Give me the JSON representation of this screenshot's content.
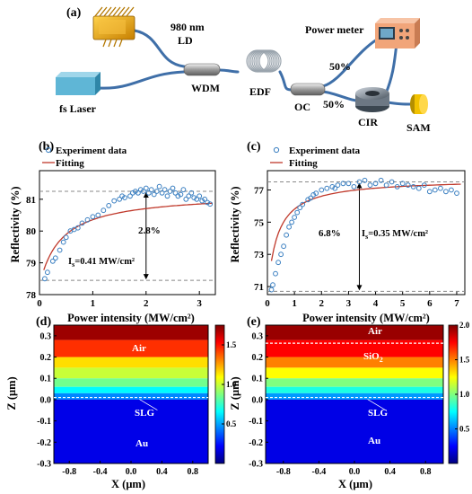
{
  "panel_labels": {
    "a": "(a)",
    "b": "(b)",
    "c": "(c)",
    "d": "(d)",
    "e": "(e)"
  },
  "setup": {
    "ld": "980 nm",
    "ld2": "LD",
    "fs_laser": "fs Laser",
    "wdm": "WDM",
    "edf": "EDF",
    "oc": "OC",
    "power_meter": "Power meter",
    "split_top": "50%",
    "split_bottom": "50%",
    "cir": "CIR",
    "sam": "SAM"
  },
  "colors": {
    "fiber": "#3f6fa8",
    "laser_gold": "#e8a21a",
    "laser_box": "#5fb6d6",
    "meter": "#f1a57a",
    "sam": "#f2c200",
    "fit": "#c0392b",
    "marker": "#3a7fc1"
  },
  "chart_data": [
    {
      "id": "b",
      "type": "scatter",
      "xlabel": "Power intensity (MW/cm²)",
      "ylabel": "Reflectivity (%)",
      "xlim": [
        0,
        3.3
      ],
      "ylim": [
        78,
        81.9
      ],
      "xticks": [
        "0",
        "1",
        "2",
        "3"
      ],
      "yticks": [
        "78",
        "79",
        "80",
        "81"
      ],
      "legend": [
        "Experiment data",
        "Fitting"
      ],
      "legend_position": "top-left",
      "annotation_delta": "2.8%",
      "annotation_is": "I",
      "annotation_is_sub": "s",
      "annotation_is_value": "=0.41 MW/cm²",
      "ref_lines": [
        81.25,
        78.45
      ],
      "fit": {
        "a_ns": 78.3,
        "delta": 2.9,
        "is": 0.41,
        "xmin": 0.08,
        "xmax": 3.25
      },
      "series": [
        {
          "name": "Experiment data",
          "x": [
            0.1,
            0.15,
            0.25,
            0.3,
            0.38,
            0.45,
            0.5,
            0.58,
            0.65,
            0.72,
            0.8,
            0.9,
            1.0,
            1.1,
            1.2,
            1.3,
            1.4,
            1.5,
            1.55,
            1.6,
            1.7,
            1.75,
            1.8,
            1.85,
            1.9,
            1.95,
            2.0,
            2.05,
            2.1,
            2.15,
            2.2,
            2.25,
            2.3,
            2.35,
            2.4,
            2.45,
            2.5,
            2.55,
            2.6,
            2.65,
            2.7,
            2.75,
            2.8,
            2.85,
            2.9,
            2.95,
            3.0,
            3.05,
            3.1,
            3.15,
            3.2
          ],
          "y": [
            78.5,
            78.7,
            79.05,
            79.15,
            79.4,
            79.65,
            79.8,
            80.0,
            80.05,
            80.1,
            80.25,
            80.35,
            80.45,
            80.5,
            80.65,
            80.8,
            80.95,
            81.0,
            81.1,
            81.05,
            81.1,
            81.2,
            81.25,
            81.2,
            81.3,
            81.25,
            81.35,
            81.2,
            81.3,
            81.15,
            81.25,
            81.4,
            81.2,
            81.3,
            81.1,
            81.25,
            81.35,
            81.2,
            81.1,
            81.15,
            81.3,
            81.0,
            81.1,
            81.2,
            81.05,
            81.0,
            81.1,
            80.95,
            81.0,
            80.9,
            80.85
          ]
        }
      ]
    },
    {
      "id": "c",
      "type": "scatter",
      "xlabel": "Power intensity (MW/cm²)",
      "ylabel": "Reflectivity (%)",
      "xlim": [
        0,
        7.3
      ],
      "ylim": [
        70.5,
        78.2
      ],
      "xticks": [
        "0",
        "1",
        "2",
        "3",
        "4",
        "5",
        "6",
        "7"
      ],
      "yticks": [
        "71",
        "73",
        "75",
        "77"
      ],
      "legend": [
        "Experiment data",
        "Fitting"
      ],
      "legend_position": "top-left",
      "annotation_delta": "6.8%",
      "annotation_is": "I",
      "annotation_is_sub": "s",
      "annotation_is_value": "=0.35 MW/cm²",
      "ref_lines": [
        77.5,
        70.7
      ],
      "fit": {
        "a_ns": 70.4,
        "delta": 7.3,
        "is": 0.35,
        "xmin": 0.15,
        "xmax": 7.15
      },
      "series": [
        {
          "name": "Experiment data",
          "x": [
            0.15,
            0.2,
            0.3,
            0.4,
            0.5,
            0.6,
            0.7,
            0.8,
            0.9,
            1.0,
            1.1,
            1.2,
            1.3,
            1.5,
            1.6,
            1.7,
            1.8,
            2.0,
            2.2,
            2.4,
            2.5,
            2.6,
            2.8,
            3.0,
            3.2,
            3.4,
            3.6,
            3.8,
            4.0,
            4.2,
            4.4,
            4.6,
            4.8,
            5.0,
            5.2,
            5.4,
            5.6,
            5.8,
            6.0,
            6.2,
            6.4,
            6.6,
            6.8,
            7.0
          ],
          "y": [
            70.8,
            71.1,
            71.8,
            72.5,
            73.0,
            73.5,
            74.2,
            74.7,
            75.0,
            75.3,
            75.6,
            75.9,
            76.1,
            76.4,
            76.5,
            76.7,
            76.8,
            77.0,
            77.1,
            77.2,
            77.1,
            77.3,
            77.4,
            77.4,
            77.2,
            77.5,
            77.6,
            77.3,
            77.4,
            77.6,
            77.3,
            77.5,
            77.2,
            77.4,
            77.3,
            77.2,
            77.1,
            77.3,
            76.9,
            77.0,
            77.1,
            76.9,
            77.0,
            76.8
          ]
        }
      ]
    },
    {
      "id": "d",
      "type": "heatmap",
      "xlabel": "X (μm)",
      "ylabel": "Z (μm)",
      "xlim": [
        -1,
        1
      ],
      "ylim": [
        -0.3,
        0.35
      ],
      "xticks": [
        "-0.8",
        "-0.4",
        "0.0",
        "0.4",
        "0.8"
      ],
      "yticks": [
        "-0.3",
        "-0.2",
        "-0.1",
        "0.0",
        "0.1",
        "0.2",
        "0.3"
      ],
      "colorbar_ticks": [
        "0.5",
        "1.0",
        "1.5"
      ],
      "colorbar_max": 1.75,
      "labels": [
        "Air",
        "SLG",
        "Au"
      ],
      "bands": [
        {
          "z0": 0.28,
          "z1": 0.35,
          "v": 1.7
        },
        {
          "z0": 0.2,
          "z1": 0.28,
          "v": 1.45
        },
        {
          "z0": 0.15,
          "z1": 0.2,
          "v": 1.15
        },
        {
          "z0": 0.1,
          "z1": 0.15,
          "v": 1.0
        },
        {
          "z0": 0.06,
          "z1": 0.1,
          "v": 0.85
        },
        {
          "z0": 0.03,
          "z1": 0.06,
          "v": 0.65
        },
        {
          "z0": 0.0,
          "z1": 0.03,
          "v": 0.45
        },
        {
          "z0": -0.3,
          "z1": 0.0,
          "v": 0.18
        }
      ],
      "interface_lines": [
        0.01
      ]
    },
    {
      "id": "e",
      "type": "heatmap",
      "xlabel": "X (μm)",
      "ylabel": "Z (μm)",
      "xlim": [
        -1,
        1
      ],
      "ylim": [
        -0.3,
        0.35
      ],
      "xticks": [
        "-0.8",
        "-0.4",
        "0.0",
        "0.4",
        "0.8"
      ],
      "yticks": [
        "-0.3",
        "-0.2",
        "-0.1",
        "0.0",
        "0.1",
        "0.2",
        "0.3"
      ],
      "colorbar_ticks": [
        "0.5",
        "1.0",
        "1.5",
        "2.0"
      ],
      "colorbar_max": 2.0,
      "labels": [
        "Air",
        "SiO",
        "2",
        "SLG",
        "Au"
      ],
      "bands": [
        {
          "z0": 0.28,
          "z1": 0.35,
          "v": 1.95
        },
        {
          "z0": 0.2,
          "z1": 0.28,
          "v": 1.75
        },
        {
          "z0": 0.15,
          "z1": 0.2,
          "v": 1.5
        },
        {
          "z0": 0.1,
          "z1": 0.15,
          "v": 1.25
        },
        {
          "z0": 0.06,
          "z1": 0.1,
          "v": 1.0
        },
        {
          "z0": 0.03,
          "z1": 0.06,
          "v": 0.8
        },
        {
          "z0": 0.0,
          "z1": 0.03,
          "v": 0.55
        },
        {
          "z0": -0.3,
          "z1": 0.0,
          "v": 0.2
        }
      ],
      "interface_lines": [
        0.265,
        0.01
      ]
    }
  ]
}
